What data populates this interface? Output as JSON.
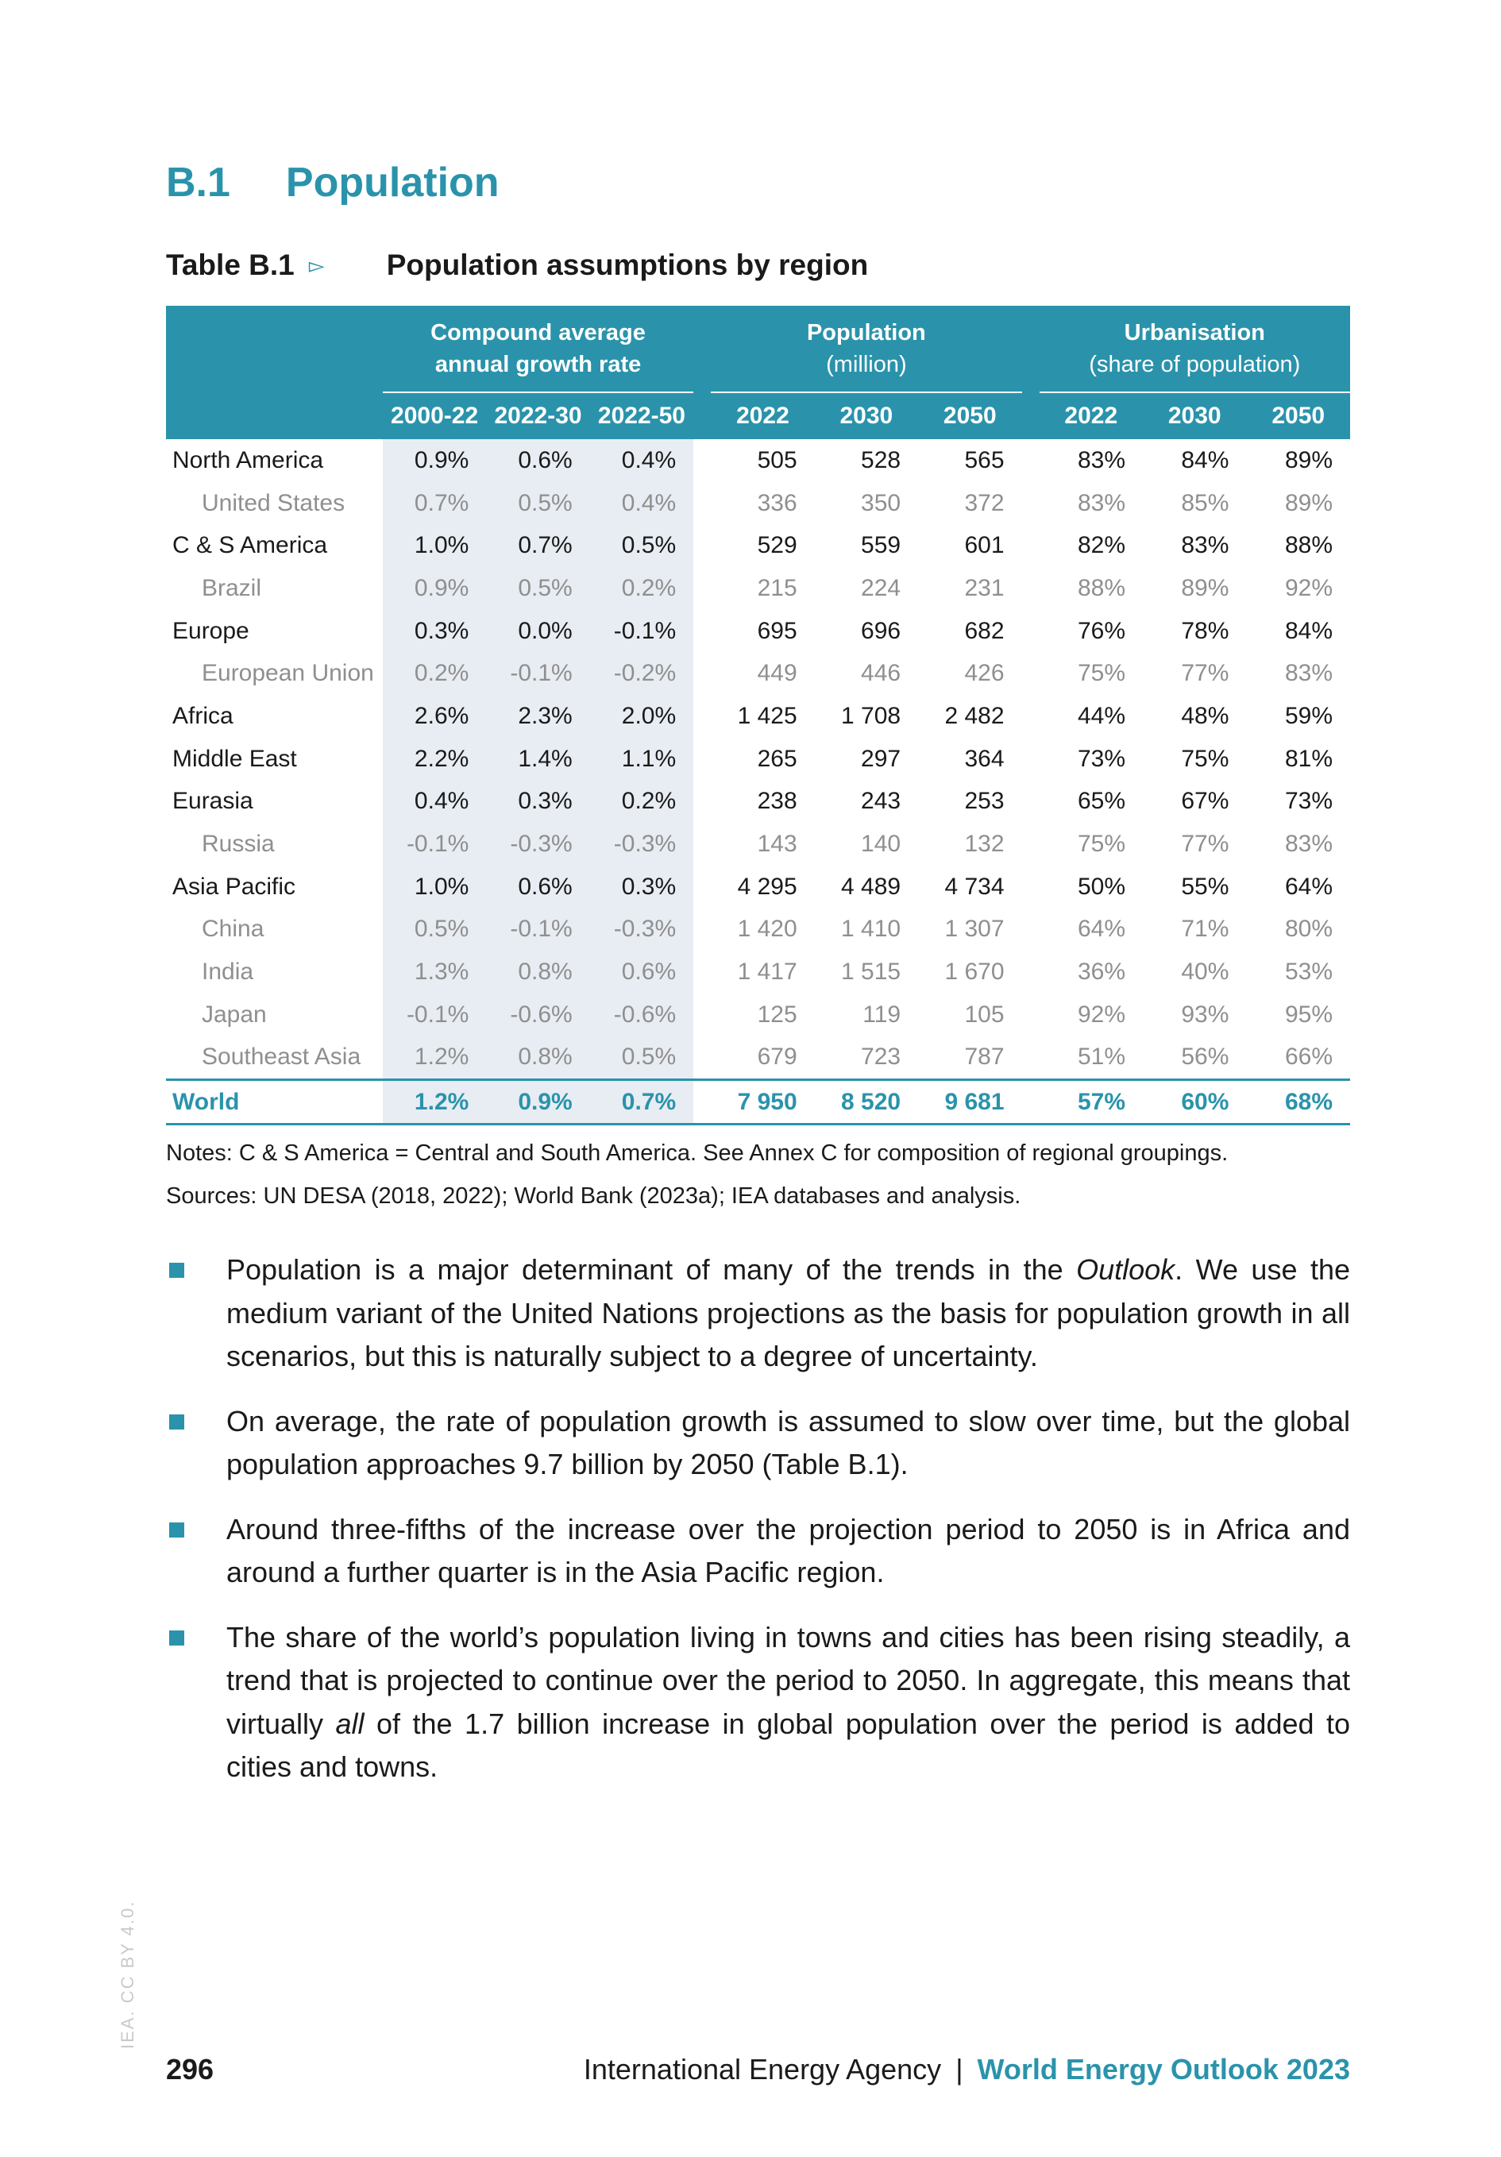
{
  "section": {
    "number": "B.1",
    "title": "Population"
  },
  "table": {
    "label": "Table B.1",
    "arrow": "▻",
    "caption": "Population assumptions by region",
    "groups": [
      {
        "title": "Compound average",
        "subtitle": "annual growth rate"
      },
      {
        "title": "Population",
        "subtitle": "(million)"
      },
      {
        "title": "Urbanisation",
        "subtitle": "(share of population)"
      }
    ],
    "columns": [
      "2000-22",
      "2022-30",
      "2022-50",
      "2022",
      "2030",
      "2050",
      "2022",
      "2030",
      "2050"
    ],
    "rows": [
      {
        "region": "North America",
        "values": [
          "0.9%",
          "0.6%",
          "0.4%",
          "505",
          "528",
          "565",
          "83%",
          "84%",
          "89%"
        ]
      },
      {
        "region": "United States",
        "values": [
          "0.7%",
          "0.5%",
          "0.4%",
          "336",
          "350",
          "372",
          "83%",
          "85%",
          "89%"
        ]
      },
      {
        "region": "C & S America",
        "values": [
          "1.0%",
          "0.7%",
          "0.5%",
          "529",
          "559",
          "601",
          "82%",
          "83%",
          "88%"
        ]
      },
      {
        "region": "Brazil",
        "values": [
          "0.9%",
          "0.5%",
          "0.2%",
          "215",
          "224",
          "231",
          "88%",
          "89%",
          "92%"
        ]
      },
      {
        "region": "Europe",
        "values": [
          "0.3%",
          "0.0%",
          "-0.1%",
          "695",
          "696",
          "682",
          "76%",
          "78%",
          "84%"
        ]
      },
      {
        "region": "European Union",
        "values": [
          "0.2%",
          "-0.1%",
          "-0.2%",
          "449",
          "446",
          "426",
          "75%",
          "77%",
          "83%"
        ]
      },
      {
        "region": "Africa",
        "values": [
          "2.6%",
          "2.3%",
          "2.0%",
          "1 425",
          "1 708",
          "2 482",
          "44%",
          "48%",
          "59%"
        ]
      },
      {
        "region": "Middle East",
        "values": [
          "2.2%",
          "1.4%",
          "1.1%",
          "265",
          "297",
          "364",
          "73%",
          "75%",
          "81%"
        ]
      },
      {
        "region": "Eurasia",
        "values": [
          "0.4%",
          "0.3%",
          "0.2%",
          "238",
          "243",
          "253",
          "65%",
          "67%",
          "73%"
        ]
      },
      {
        "region": "Russia",
        "values": [
          "-0.1%",
          "-0.3%",
          "-0.3%",
          "143",
          "140",
          "132",
          "75%",
          "77%",
          "83%"
        ]
      },
      {
        "region": "Asia Pacific",
        "values": [
          "1.0%",
          "0.6%",
          "0.3%",
          "4 295",
          "4 489",
          "4 734",
          "50%",
          "55%",
          "64%"
        ]
      },
      {
        "region": "China",
        "values": [
          "0.5%",
          "-0.1%",
          "-0.3%",
          "1 420",
          "1 410",
          "1 307",
          "64%",
          "71%",
          "80%"
        ]
      },
      {
        "region": "India",
        "values": [
          "1.3%",
          "0.8%",
          "0.6%",
          "1 417",
          "1 515",
          "1 670",
          "36%",
          "40%",
          "53%"
        ]
      },
      {
        "region": "Japan",
        "values": [
          "-0.1%",
          "-0.6%",
          "-0.6%",
          "125",
          "119",
          "105",
          "92%",
          "93%",
          "95%"
        ]
      },
      {
        "region": "Southeast Asia",
        "values": [
          "1.2%",
          "0.8%",
          "0.5%",
          "679",
          "723",
          "787",
          "51%",
          "56%",
          "66%"
        ]
      }
    ],
    "world": {
      "region": "World",
      "values": [
        "1.2%",
        "0.9%",
        "0.7%",
        "7 950",
        "8 520",
        "9 681",
        "57%",
        "60%",
        "68%"
      ]
    }
  },
  "notes": "Notes: C & S America = Central and South America. See Annex C for composition of regional groupings.",
  "sources": "Sources: UN DESA (2018, 2022); World Bank (2023a); IEA databases and analysis.",
  "bullets": [
    {
      "before": "Population is a major determinant of many of the trends in the ",
      "em": "Outlook",
      "after": ". We use the medium variant of the United Nations projections as the basis for population growth in all scenarios, but this is naturally subject to a degree of uncertainty."
    },
    {
      "before": "On average, the rate of population growth is assumed to slow over time, but the global population approaches 9.7 billion by 2050 (Table B.1).",
      "em": "",
      "after": ""
    },
    {
      "before": "Around three-fifths of the increase over the projection period to 2050 is in Africa and around a further quarter is in the Asia Pacific region.",
      "em": "",
      "after": ""
    },
    {
      "before": "The share of the world’s population living in towns and cities has been rising steadily, a trend that is projected to continue over the period to 2050. In aggregate, this means that virtually ",
      "em": "all",
      "after": " of the 1.7 billion increase in global population over the period is added to cities and towns."
    }
  ],
  "footer": {
    "license": "IEA. CC BY 4.0.",
    "page_number": "296",
    "agency": "International Energy Agency",
    "separator": "|",
    "publication": "World Energy Outlook 2023"
  }
}
